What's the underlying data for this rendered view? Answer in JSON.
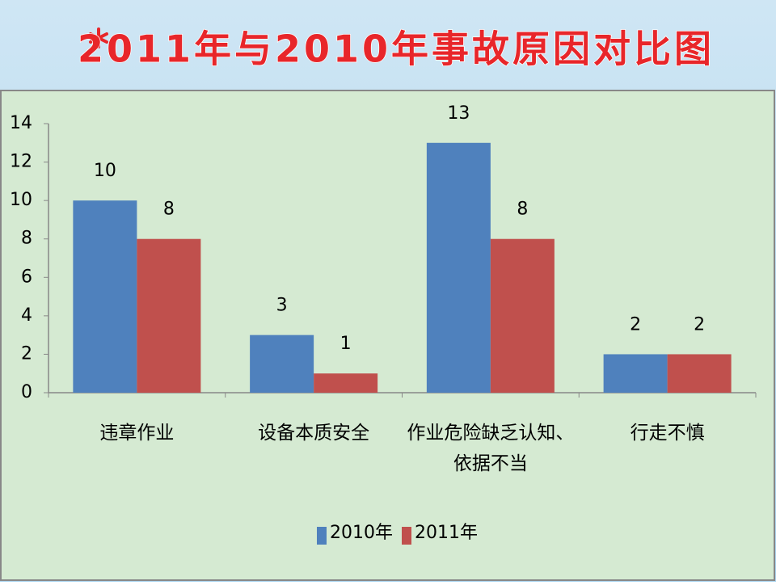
{
  "chart_data": {
    "type": "bar",
    "title": "2011年与2010年事故原因对比图",
    "categories": [
      "违章作业",
      "设备本质安全",
      "作业危险缺乏认知、依据不当",
      "行走不慎"
    ],
    "series": [
      {
        "name": "2010年",
        "color": "#4f81bd",
        "values": [
          10,
          3,
          13,
          2
        ]
      },
      {
        "name": "2011年",
        "color": "#c0504d",
        "values": [
          8,
          1,
          8,
          2
        ]
      }
    ],
    "ylim": [
      0,
      14
    ],
    "yticks": [
      0,
      2,
      4,
      6,
      8,
      10,
      12,
      14
    ],
    "grid": false,
    "legend": "bottom"
  }
}
